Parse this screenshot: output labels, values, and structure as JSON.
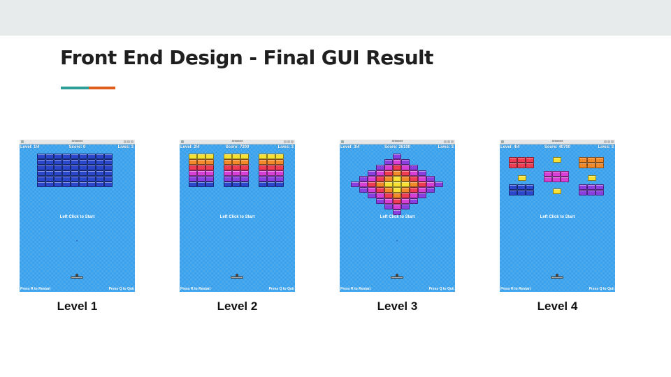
{
  "slide": {
    "title": "Front End Design - Final GUI Result",
    "accent_colors": [
      "#2e9e98",
      "#e05e1c"
    ],
    "top_band_color": "#e8ebec"
  },
  "game": {
    "window_title": "Arkanoid",
    "background_color": "#3aa1ec",
    "brick_colors": {
      "navy": "#2b48cc",
      "orange": "#f28a2a",
      "red": "#ef3b54",
      "magenta": "#d83fd6",
      "yellow": "#f7e233",
      "purple": "#8a3fe0"
    },
    "screens": [
      {
        "caption": "Level 1",
        "level_text": "Level: 1/4",
        "score_text": "Score: 0",
        "lives_text": "Lives: 3",
        "start_text": "Left Click to Start",
        "restart_text": "Press R to Restart",
        "quit_text": "Press Q to Quit"
      },
      {
        "caption": "Level 2",
        "level_text": "Level: 2/4",
        "score_text": "Score: 7200",
        "lives_text": "Lives: 3",
        "start_text": "Left Click to Start",
        "restart_text": "Press R to Restart",
        "quit_text": "Press Q to Quit"
      },
      {
        "caption": "Level 3",
        "level_text": "Level: 3/4",
        "score_text": "Score: 26100",
        "lives_text": "Lives: 3",
        "start_text": "Left Click to Start",
        "restart_text": "Press R to Restart",
        "quit_text": "Press Q to Quit"
      },
      {
        "caption": "Level 4",
        "level_text": "Level: 4/4",
        "score_text": "Score: 40700",
        "lives_text": "Lives: 3",
        "start_text": "Left Click to Start",
        "restart_text": "Press R to Restart",
        "quit_text": "Press Q to Quit"
      }
    ]
  }
}
